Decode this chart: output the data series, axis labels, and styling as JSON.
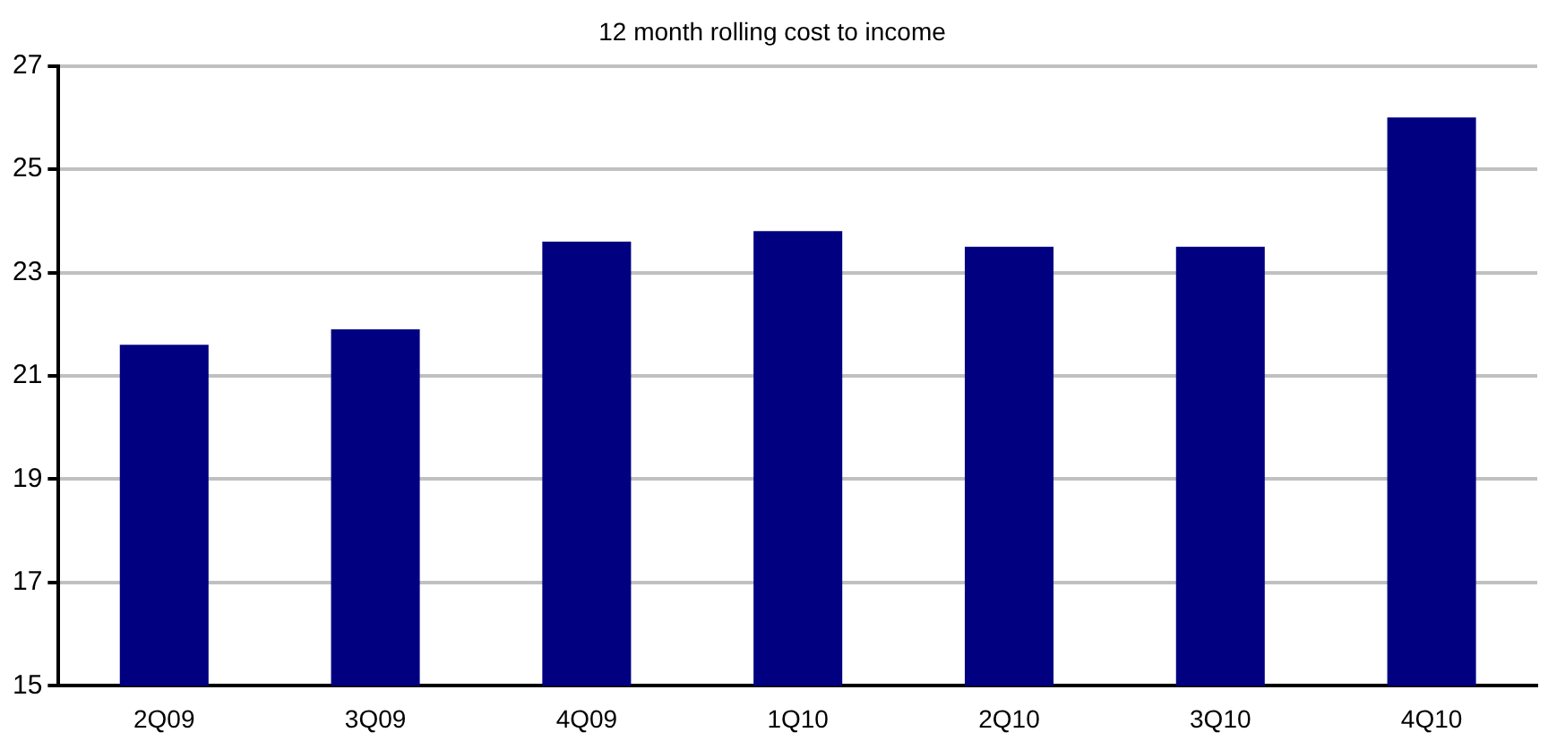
{
  "chart_data": {
    "type": "bar",
    "title": "12 month rolling cost to income",
    "categories": [
      "2Q09",
      "3Q09",
      "4Q09",
      "1Q10",
      "2Q10",
      "3Q10",
      "4Q10"
    ],
    "values": [
      21.6,
      21.9,
      23.6,
      23.8,
      23.5,
      23.5,
      26.0
    ],
    "color": "#000080",
    "ylim": [
      15,
      27
    ],
    "yticks": [
      15,
      17,
      19,
      21,
      23,
      25,
      27
    ],
    "grid": "y",
    "legend": false
  }
}
